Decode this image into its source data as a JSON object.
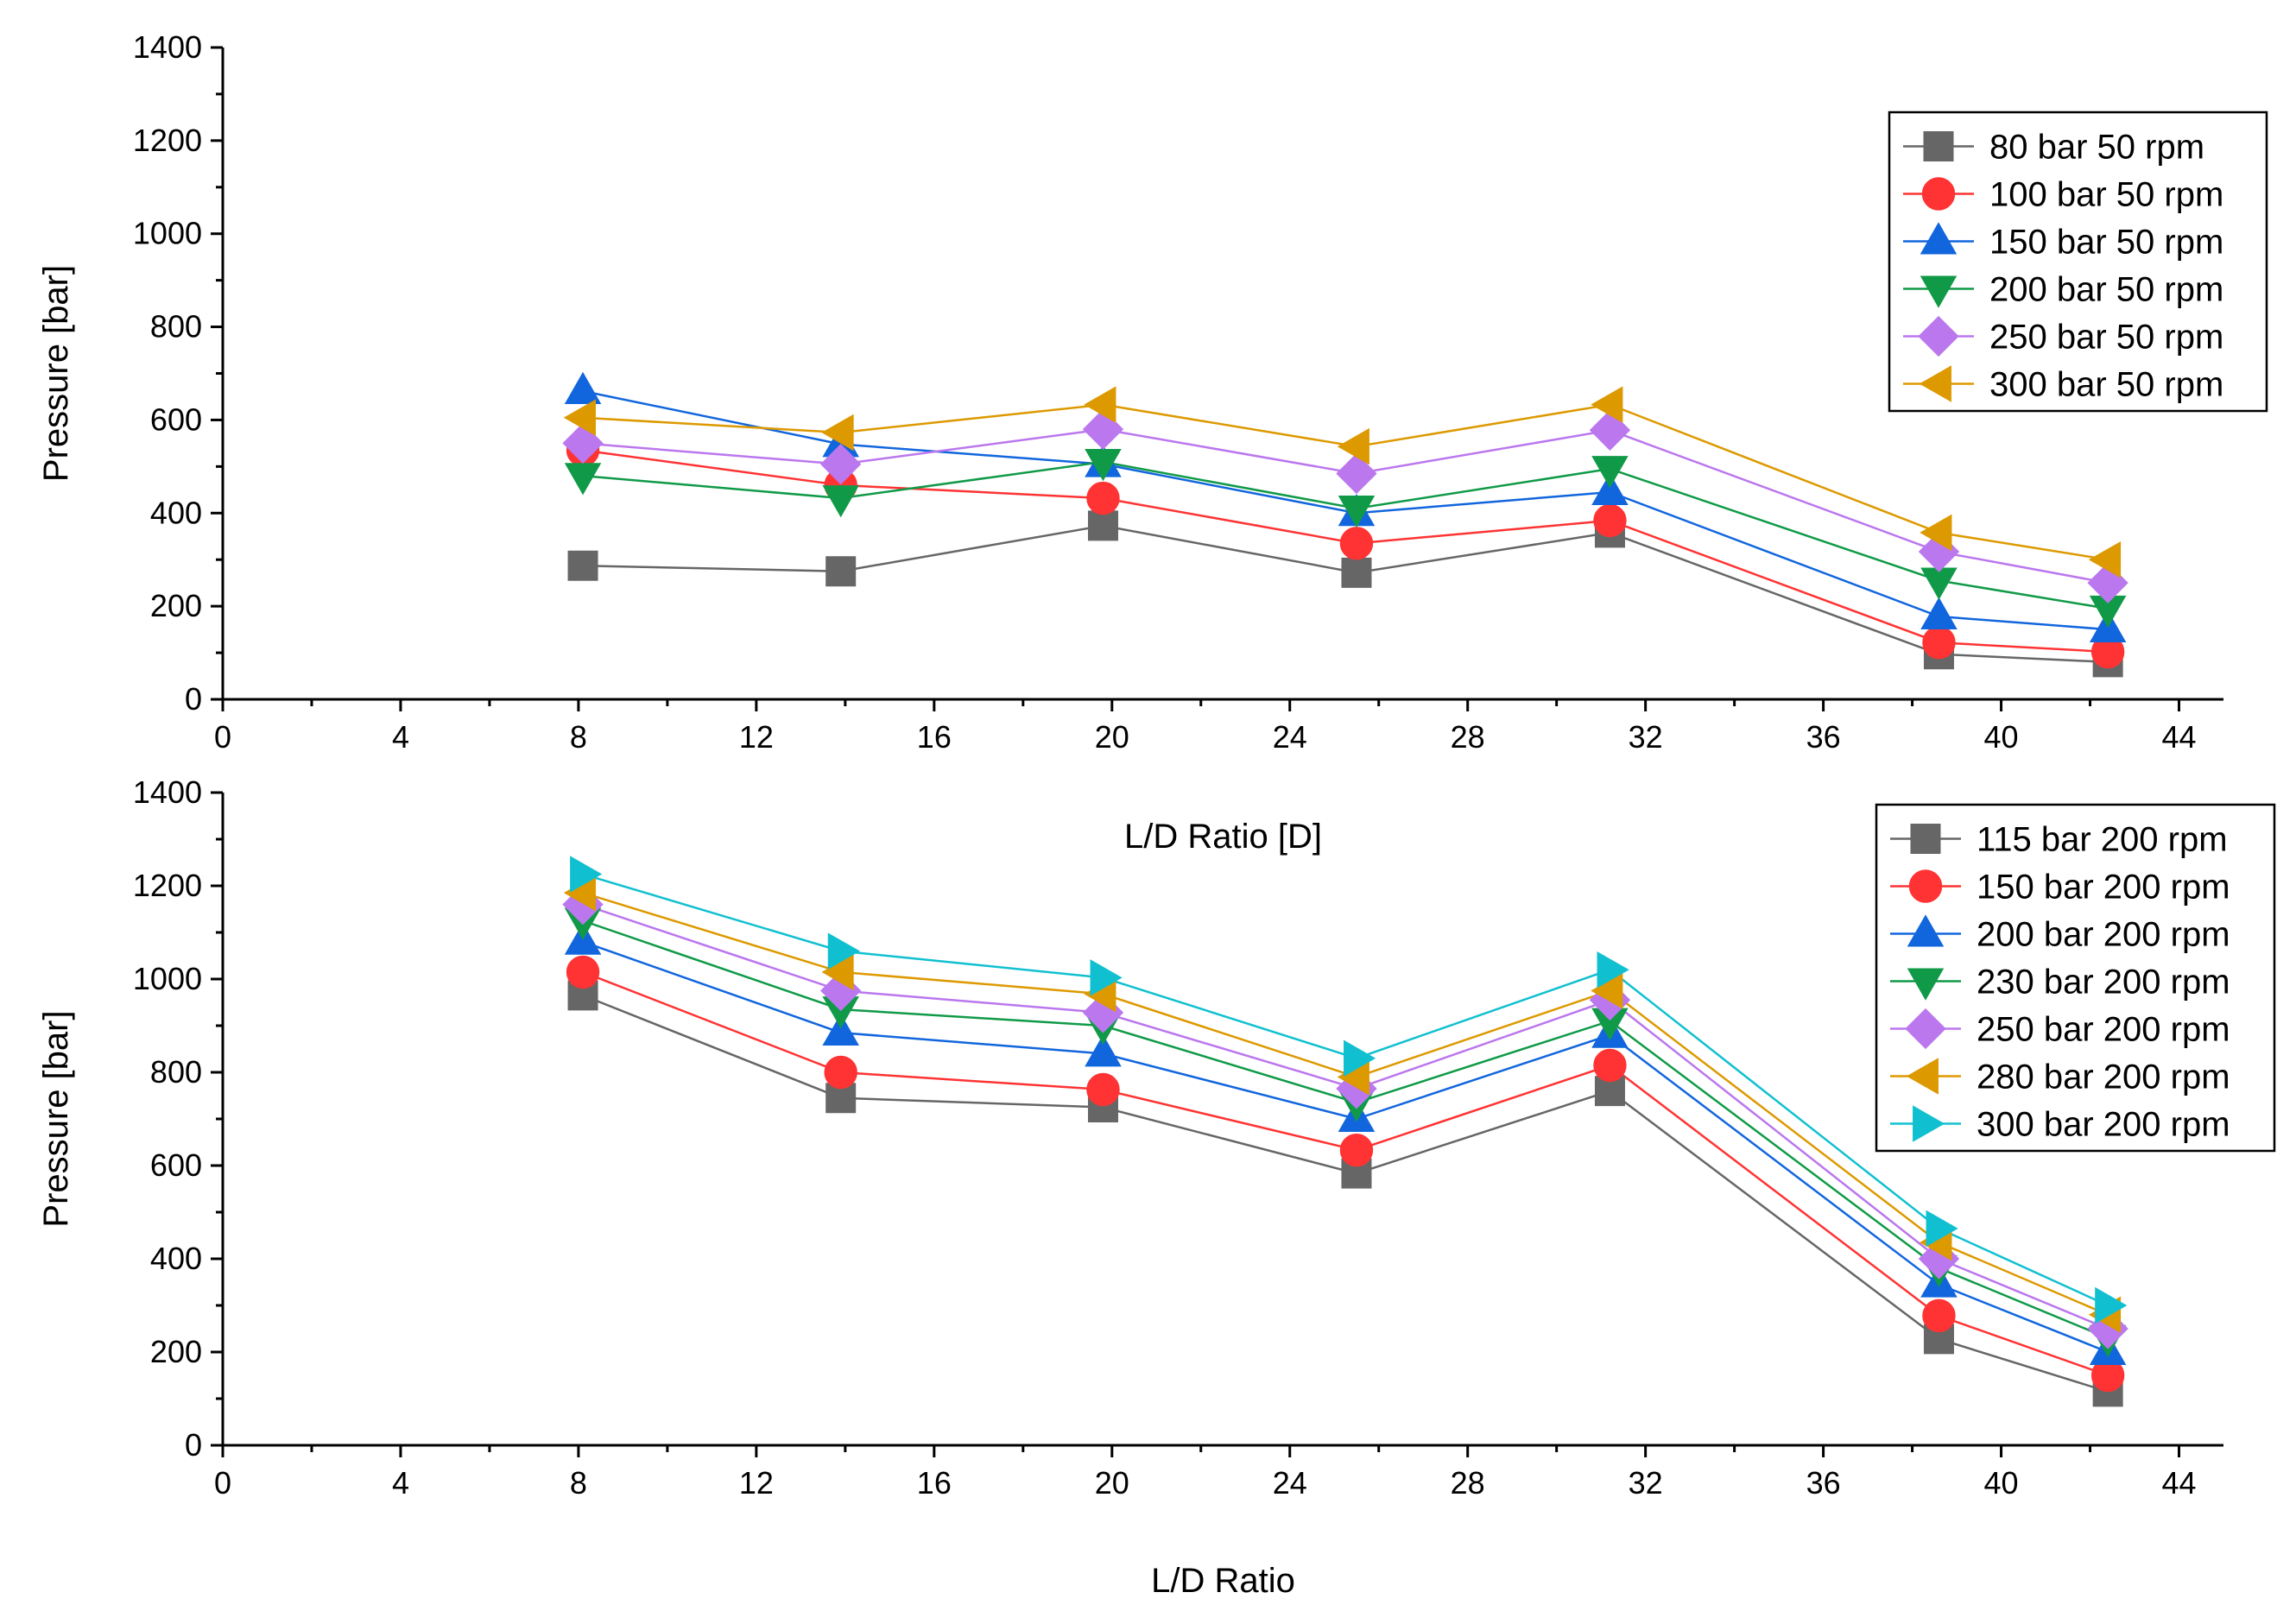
{
  "chart_data": [
    {
      "type": "line",
      "xlabel": "L/D Ratio [D]",
      "ylabel": "Pressure [bar]",
      "xlim": [
        0,
        45
      ],
      "ylim": [
        0,
        1400
      ],
      "xticks": [
        0,
        4,
        8,
        12,
        16,
        20,
        24,
        28,
        32,
        36,
        40,
        44
      ],
      "yticks": [
        0,
        200,
        400,
        600,
        800,
        1000,
        1200,
        1400
      ],
      "legend_position": "top-right",
      "x": [
        8.1,
        13.9,
        19.8,
        25.5,
        31.2,
        38.6,
        42.4
      ],
      "series": [
        {
          "name": "80 bar 50 rpm",
          "color": "#666666",
          "marker": "square",
          "values": [
            287,
            275,
            373,
            272,
            358,
            97,
            80
          ]
        },
        {
          "name": "100 bar 50 rpm",
          "color": "#ff3333",
          "marker": "circle",
          "values": [
            535,
            460,
            432,
            335,
            384,
            122,
            102
          ]
        },
        {
          "name": "150 bar 50 rpm",
          "color": "#1166dd",
          "marker": "triangle-up",
          "values": [
            662,
            548,
            505,
            400,
            445,
            178,
            150
          ]
        },
        {
          "name": "200 bar 50 rpm",
          "color": "#109a48",
          "marker": "triangle-down",
          "values": [
            480,
            432,
            510,
            410,
            495,
            255,
            195
          ]
        },
        {
          "name": "250 bar 50 rpm",
          "color": "#bb77ee",
          "marker": "diamond",
          "values": [
            550,
            505,
            580,
            485,
            578,
            317,
            250
          ]
        },
        {
          "name": "300 bar 50 rpm",
          "color": "#dd9900",
          "marker": "triangle-left",
          "values": [
            605,
            573,
            633,
            543,
            633,
            358,
            300
          ]
        }
      ]
    },
    {
      "type": "line",
      "xlabel": "L/D Ratio",
      "ylabel": "Pressure [bar]",
      "xlim": [
        0,
        45
      ],
      "ylim": [
        0,
        1400
      ],
      "xticks": [
        0,
        4,
        8,
        12,
        16,
        20,
        24,
        28,
        32,
        36,
        40,
        44
      ],
      "yticks": [
        0,
        200,
        400,
        600,
        800,
        1000,
        1200,
        1400
      ],
      "legend_position": "top-right",
      "x": [
        8.1,
        13.9,
        19.8,
        25.5,
        31.2,
        38.6,
        42.4
      ],
      "series": [
        {
          "name": "115 bar 200 rpm",
          "color": "#666666",
          "marker": "square",
          "values": [
            965,
            745,
            725,
            583,
            760,
            228,
            115
          ]
        },
        {
          "name": "150 bar 200 rpm",
          "color": "#ff3333",
          "marker": "circle",
          "values": [
            1015,
            800,
            763,
            633,
            815,
            278,
            150
          ]
        },
        {
          "name": "200 bar 200 rpm",
          "color": "#1166dd",
          "marker": "triangle-up",
          "values": [
            1080,
            885,
            840,
            700,
            880,
            345,
            200
          ]
        },
        {
          "name": "230 bar 200 rpm",
          "color": "#109a48",
          "marker": "triangle-down",
          "values": [
            1125,
            935,
            900,
            735,
            910,
            380,
            230
          ]
        },
        {
          "name": "250 bar 200 rpm",
          "color": "#bb77ee",
          "marker": "diamond",
          "values": [
            1160,
            975,
            928,
            765,
            955,
            400,
            250
          ]
        },
        {
          "name": "280 bar 200 rpm",
          "color": "#dd9900",
          "marker": "triangle-left",
          "values": [
            1185,
            1015,
            968,
            790,
            975,
            435,
            280
          ]
        },
        {
          "name": "300 bar 200 rpm",
          "color": "#11c0d0",
          "marker": "triangle-right",
          "values": [
            1225,
            1060,
            1003,
            830,
            1020,
            465,
            300
          ]
        }
      ]
    }
  ]
}
